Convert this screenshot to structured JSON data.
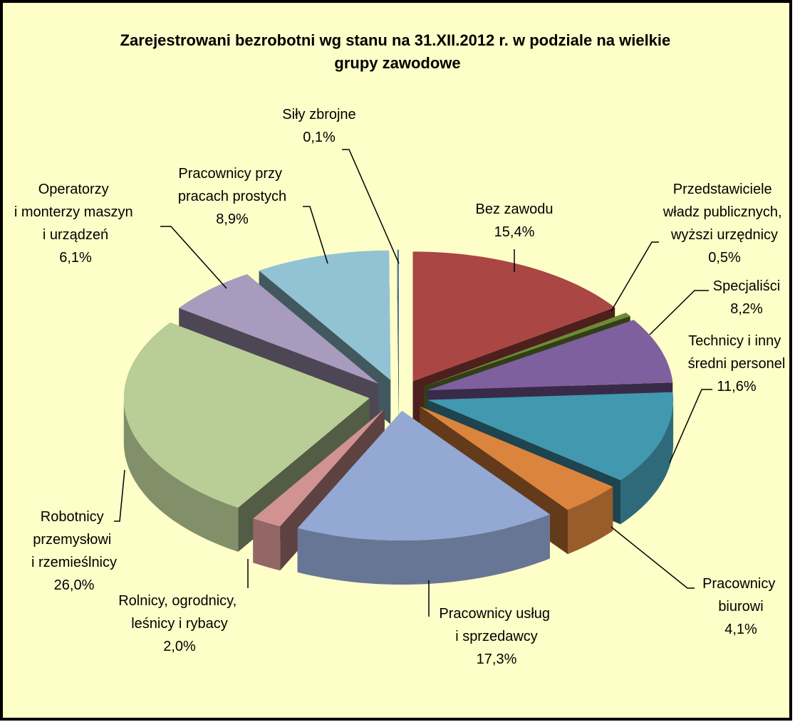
{
  "chart_data": {
    "type": "pie3d",
    "title": "Zarejestrowani bezrobotni wg stanu na 31.XII.2012 r. w podziale na wielkie grupy zawodowe",
    "categories": [
      "Bez zawodu",
      "Przedstawiciele władz publicznych, wyższi urzędnicy",
      "Specjaliści",
      "Technicy i inny średni personel",
      "Pracownicy biurowi",
      "Pracownicy usług i sprzedawcy",
      "Rolnicy, ogrodnicy, leśnicy i rybacy",
      "Robotnicy przemysłowi i rzemieślnicy",
      "Operatorzy i monterzy maszyn i urządzeń",
      "Pracownicy przy pracach prostych",
      "Siły zbrojne"
    ],
    "values": [
      15.4,
      0.5,
      8.2,
      11.6,
      4.1,
      17.3,
      2.0,
      26.0,
      6.1,
      8.9,
      0.1
    ],
    "value_labels": [
      "15,4%",
      "0,5%",
      "8,2%",
      "11,6%",
      "4,1%",
      "17,3%",
      "2,0%",
      "26,0%",
      "6,1%",
      "8,9%",
      "0,1%"
    ],
    "colors": [
      "#aa4643",
      "#6f8a35",
      "#7e609e",
      "#4198af",
      "#db843d",
      "#93a9d4",
      "#d09391",
      "#b9cd96",
      "#a99bbd",
      "#92c3d4",
      "#4572a7"
    ]
  }
}
